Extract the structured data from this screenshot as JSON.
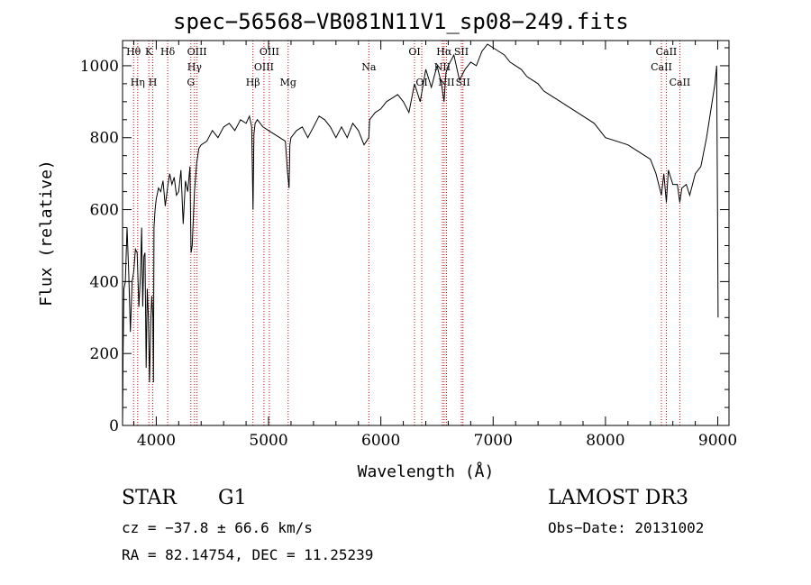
{
  "chart_data": {
    "type": "line",
    "title": "spec−56568−VB081N11V1_sp08−249.fits",
    "xlabel": "Wavelength (Å)",
    "ylabel": "Flux (relative)",
    "xlim": [
      3700,
      9100
    ],
    "ylim": [
      0,
      1070
    ],
    "x_ticks": [
      4000,
      5000,
      6000,
      7000,
      8000,
      9000
    ],
    "y_ticks": [
      0,
      200,
      400,
      600,
      800,
      1000
    ],
    "series": [
      {
        "x": [
          3700,
          3705,
          3712,
          3725,
          3740,
          3755,
          3770,
          3785,
          3800,
          3815,
          3830,
          3845,
          3860,
          3870,
          3880,
          3890,
          3900,
          3910,
          3920,
          3930,
          3940,
          3950,
          3960,
          3970,
          3975,
          3980,
          3990,
          4000,
          4020,
          4040,
          4060,
          4080,
          4100,
          4120,
          4140,
          4160,
          4180,
          4200,
          4220,
          4240,
          4260,
          4280,
          4300,
          4310,
          4320,
          4340,
          4360,
          4380,
          4400,
          4450,
          4500,
          4550,
          4600,
          4650,
          4700,
          4750,
          4800,
          4830,
          4850,
          4862,
          4870,
          4880,
          4900,
          4950,
          5000,
          5050,
          5100,
          5150,
          5170,
          5183,
          5190,
          5200,
          5250,
          5300,
          5350,
          5400,
          5450,
          5500,
          5550,
          5600,
          5650,
          5700,
          5750,
          5800,
          5850,
          5893,
          5900,
          5950,
          6000,
          6050,
          6100,
          6150,
          6200,
          6250,
          6300,
          6350,
          6400,
          6450,
          6500,
          6540,
          6563,
          6580,
          6600,
          6650,
          6700,
          6750,
          6800,
          6850,
          6900,
          6950,
          7000,
          7050,
          7100,
          7150,
          7200,
          7250,
          7300,
          7350,
          7400,
          7450,
          7500,
          7600,
          7700,
          7800,
          7900,
          8000,
          8100,
          8200,
          8300,
          8400,
          8450,
          8498,
          8520,
          8542,
          8560,
          8600,
          8640,
          8662,
          8680,
          8720,
          8750,
          8800,
          8850,
          8900,
          8950,
          8975,
          8990,
          9000,
          9003
        ],
        "y": [
          0,
          200,
          380,
          400,
          550,
          420,
          260,
          400,
          430,
          490,
          480,
          330,
          420,
          550,
          330,
          470,
          480,
          160,
          380,
          300,
          120,
          280,
          360,
          300,
          120,
          550,
          600,
          630,
          660,
          650,
          680,
          610,
          660,
          700,
          670,
          690,
          640,
          650,
          710,
          560,
          680,
          650,
          720,
          480,
          500,
          650,
          730,
          770,
          780,
          790,
          820,
          800,
          830,
          840,
          820,
          850,
          840,
          860,
          830,
          600,
          810,
          840,
          850,
          830,
          820,
          810,
          800,
          790,
          700,
          660,
          780,
          800,
          820,
          830,
          800,
          830,
          860,
          850,
          830,
          800,
          830,
          800,
          840,
          820,
          780,
          800,
          850,
          870,
          880,
          900,
          910,
          920,
          900,
          870,
          950,
          900,
          990,
          940,
          1000,
          950,
          900,
          980,
          1000,
          1030,
          960,
          990,
          1010,
          1000,
          1040,
          1060,
          1050,
          1040,
          1030,
          1010,
          1000,
          990,
          970,
          960,
          950,
          930,
          920,
          900,
          880,
          860,
          840,
          800,
          790,
          780,
          760,
          740,
          700,
          640,
          700,
          620,
          710,
          670,
          670,
          620,
          660,
          670,
          640,
          700,
          720,
          800,
          900,
          950,
          1000,
          500,
          300
        ]
      }
    ],
    "line_labels": [
      {
        "text": "Hθ",
        "x": 3798,
        "row": 0
      },
      {
        "text": "Hη",
        "x": 3835,
        "row": 2
      },
      {
        "text": "K",
        "x": 3934,
        "row": 0
      },
      {
        "text": "H",
        "x": 3969,
        "row": 2
      },
      {
        "text": "Hδ",
        "x": 4102,
        "row": 0
      },
      {
        "text": "OIII",
        "x": 4363,
        "row": 0
      },
      {
        "text": "Hγ",
        "x": 4341,
        "row": 1
      },
      {
        "text": "G",
        "x": 4308,
        "row": 2
      },
      {
        "text": "Hβ",
        "x": 4861,
        "row": 2
      },
      {
        "text": "OIII",
        "x": 4959,
        "row": 1
      },
      {
        "text": "OIII",
        "x": 5007,
        "row": 0
      },
      {
        "text": "Mg",
        "x": 5175,
        "row": 2
      },
      {
        "text": "Na",
        "x": 5893,
        "row": 1
      },
      {
        "text": "OI",
        "x": 6300,
        "row": 0
      },
      {
        "text": "OI",
        "x": 6364,
        "row": 2
      },
      {
        "text": "Hα",
        "x": 6563,
        "row": 0
      },
      {
        "text": "NII",
        "x": 6548,
        "row": 1
      },
      {
        "text": "NII",
        "x": 6584,
        "row": 2
      },
      {
        "text": "SII",
        "x": 6717,
        "row": 0
      },
      {
        "text": "SII",
        "x": 6731,
        "row": 2
      },
      {
        "text": "CaII",
        "x": 8542,
        "row": 0
      },
      {
        "text": "CaII",
        "x": 8498,
        "row": 1
      },
      {
        "text": "CaII",
        "x": 8662,
        "row": 2
      }
    ],
    "line_marker_color": "#cc0000"
  },
  "info": {
    "object_class": "STAR",
    "subclass": "G1",
    "survey": "LAMOST DR3",
    "cz": "cz = −37.8 ± 66.6 km/s",
    "obs_date": "Obs−Date: 20131002",
    "coords": "RA =  82.14754, DEC =  11.25239"
  }
}
